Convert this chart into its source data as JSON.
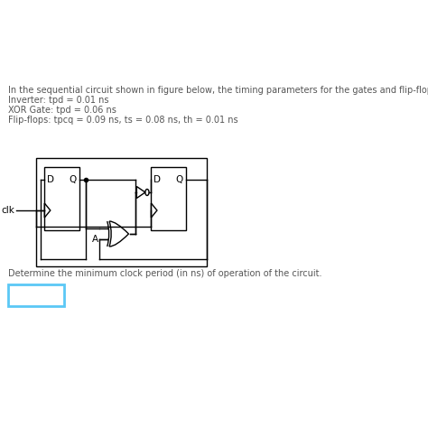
{
  "title_text": "In the sequential circuit shown in figure below, the timing parameters for the gates and flip-flops are as follows:",
  "line2": "Inverter: tpd = 0.01 ns",
  "line3": "XOR Gate: tpd = 0.06 ns",
  "line4": "Flip-flops: tpcq = 0.09 ns, ts = 0.08 ns, th = 0.01 ns",
  "bottom_text": "Determine the minimum clock period (in ns) of operation of the circuit.",
  "clk_label": "clk",
  "A_label": "A",
  "D_label1": "D",
  "Q_label1": "Q",
  "D_label2": "D",
  "Q_label2": "Q",
  "bg_color": "#ffffff",
  "line_color": "#000000",
  "answer_box_color": "#5bc8f5",
  "text_color": "#555555",
  "fs_main": 7.0,
  "fs_label": 7.5,
  "lw": 1.0
}
